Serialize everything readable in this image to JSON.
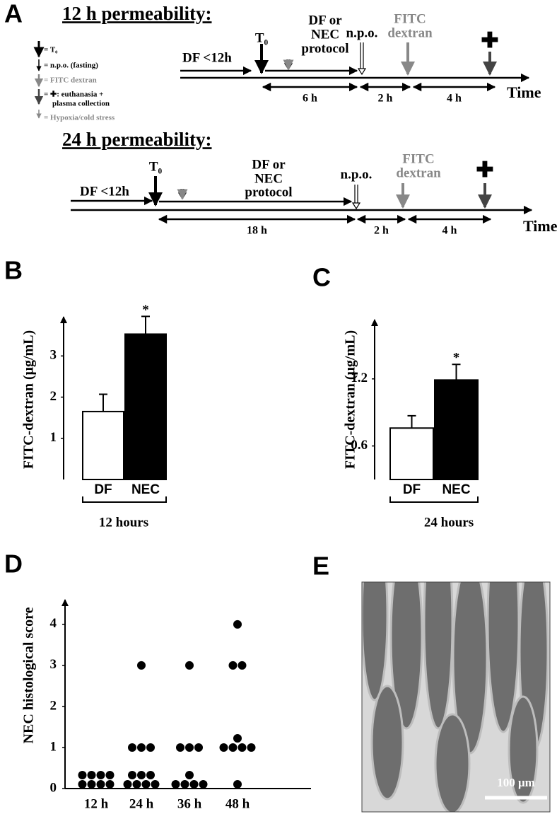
{
  "figure": {
    "panel_labels": [
      "A",
      "B",
      "C",
      "D",
      "E"
    ],
    "legend": [
      "= T₀",
      "= n.p.o. (fasting)",
      "= FITC dextran",
      "= ✚: euthanasia +",
      "plasma collection",
      "= Hypoxia/cold stress"
    ],
    "timelines": [
      {
        "title": "12 h permeability:",
        "pre": "DF <12h",
        "t0": "T₀",
        "protocol": [
          "DF or",
          "NEC",
          "protocol"
        ],
        "npo": "n.p.o.",
        "fitc": [
          "FITC",
          "dextran"
        ],
        "cross": "✚",
        "durations": [
          "6 h",
          "2 h",
          "4 h"
        ],
        "time": "Time"
      },
      {
        "title": "24 h permeability:",
        "pre": "DF <12h",
        "t0": "T₀",
        "protocol": [
          "DF or",
          "NEC",
          "protocol"
        ],
        "npo": "n.p.o.",
        "fitc": [
          "FITC",
          "dextran"
        ],
        "cross": "✚",
        "durations": [
          "18 h",
          "2 h",
          "4 h"
        ],
        "time": "Time"
      }
    ],
    "micrograph": {
      "scale_bar": "100 μm"
    }
  },
  "chart_data": [
    {
      "type": "bar",
      "categories": [
        "DF",
        "NEC"
      ],
      "values": [
        1.65,
        3.53
      ],
      "errors": [
        0.42,
        0.43
      ],
      "colors": [
        "#ffffff",
        "#000000"
      ],
      "value_annotations": [
        null,
        "*"
      ],
      "ylabel": "FITC-dextran (μg/mL)",
      "xlabel": "12 hours",
      "ylim": [
        0,
        3.95
      ],
      "yticks": [
        1,
        2,
        3
      ]
    },
    {
      "type": "bar",
      "categories": [
        "DF",
        "NEC"
      ],
      "values": [
        0.76,
        1.19
      ],
      "errors": [
        0.11,
        0.14
      ],
      "colors": [
        "#ffffff",
        "#000000"
      ],
      "value_annotations": [
        null,
        "*"
      ],
      "ylabel": "FITC-dextran (μg/mL)",
      "xlabel": "24 hours",
      "ylim": [
        0.3,
        1.73
      ],
      "yticks": [
        0.6,
        1.2
      ]
    },
    {
      "type": "dot",
      "categories": [
        "12 h",
        "24 h",
        "36 h",
        "48 h"
      ],
      "values": [
        [
          0,
          0,
          0,
          0,
          0,
          0,
          0,
          0
        ],
        [
          3,
          1,
          1,
          1,
          0,
          0,
          0,
          0,
          0,
          0,
          0
        ],
        [
          3,
          1,
          1,
          1,
          0,
          0,
          0,
          0,
          0
        ],
        [
          4,
          3,
          3,
          1,
          1,
          1,
          1,
          1,
          0
        ]
      ],
      "color": "#000000",
      "ylabel": "NEC histological score",
      "ylim": [
        0,
        4.6
      ],
      "yticks": [
        0,
        1,
        2,
        3,
        4
      ]
    }
  ]
}
